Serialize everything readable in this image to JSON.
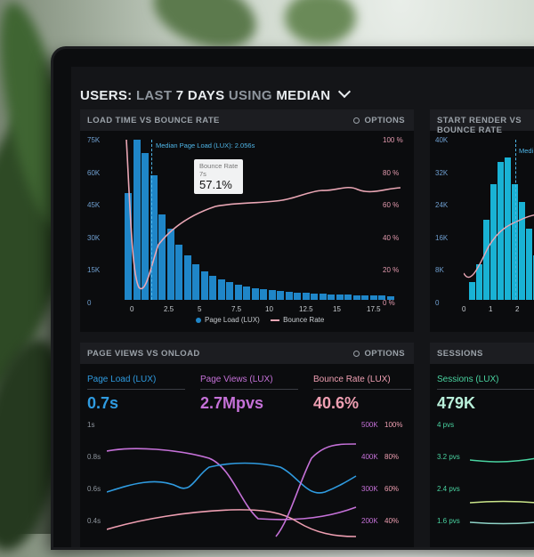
{
  "dashboard": {
    "title_users": "USERS:",
    "title_last": "LAST",
    "title_days": "7 DAYS",
    "title_using": "USING",
    "title_median": "MEDIAN"
  },
  "panel_load": {
    "title": "LOAD TIME VS BOUNCE RATE",
    "options": "OPTIONS",
    "y_left": [
      "75K",
      "60K",
      "45K",
      "30K",
      "15K",
      "0"
    ],
    "y_right": [
      "100 %",
      "80 %",
      "60 %",
      "40 %",
      "20 %",
      "0 %"
    ],
    "x_ticks": [
      "0",
      "2.5",
      "5",
      "7.5",
      "10",
      "12.5",
      "15",
      "17.5"
    ],
    "median_label": "Median Page Load (LUX): 2.056s",
    "tooltip_title": "Bounce Rate",
    "tooltip_sub": "7s",
    "tooltip_value": "57.1%",
    "legend_bar": "Page Load (LUX)",
    "legend_line": "Bounce Rate",
    "colors": {
      "bar": "#1f86c8",
      "line": "#e9a6b4"
    }
  },
  "panel_render": {
    "title": "START RENDER VS BOUNCE RATE",
    "y_left": [
      "40K",
      "32K",
      "24K",
      "16K",
      "8K",
      "0"
    ],
    "x_ticks": [
      "0",
      "1",
      "2"
    ],
    "median_label": "Medi"
  },
  "panel_views": {
    "title": "PAGE VIEWS VS ONLOAD",
    "options": "OPTIONS",
    "metrics": [
      {
        "label": "Page Load (LUX)",
        "value": "0.7s",
        "color": "#2f9be0"
      },
      {
        "label": "Page Views (LUX)",
        "value": "2.7Mpvs",
        "color": "#c571d8"
      },
      {
        "label": "Bounce Rate (LUX)",
        "value": "40.6%",
        "color": "#ef9fb2"
      }
    ],
    "y_left": [
      "1s",
      "0.8s",
      "0.6s",
      "0.4s"
    ],
    "y_mid": [
      "500K",
      "400K",
      "300K",
      "200K"
    ],
    "y_right": [
      "100%",
      "80%",
      "60%",
      "40%"
    ]
  },
  "panel_sessions": {
    "title": "SESSIONS",
    "label": "Sessions (LUX)",
    "value": "479K",
    "y_left": [
      "4 pvs",
      "3.2 pvs",
      "2.4 pvs",
      "1.6 pvs"
    ],
    "color": "#49d3a0"
  }
}
